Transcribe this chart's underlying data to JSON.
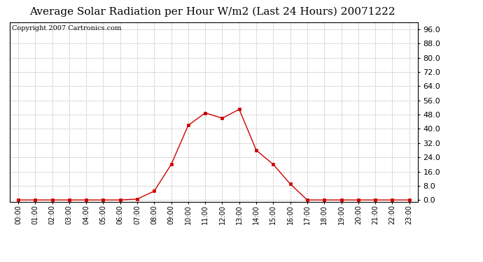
{
  "title": "Average Solar Radiation per Hour W/m2 (Last 24 Hours) 20071222",
  "copyright_text": "Copyright 2007 Cartronics.com",
  "hours": [
    "00:00",
    "01:00",
    "02:00",
    "03:00",
    "04:00",
    "05:00",
    "06:00",
    "07:00",
    "08:00",
    "09:00",
    "10:00",
    "11:00",
    "12:00",
    "13:00",
    "14:00",
    "15:00",
    "16:00",
    "17:00",
    "18:00",
    "19:00",
    "20:00",
    "21:00",
    "22:00",
    "23:00"
  ],
  "values": [
    0.0,
    0.0,
    0.0,
    0.0,
    0.0,
    0.0,
    0.0,
    0.5,
    5.0,
    20.0,
    42.0,
    49.0,
    46.0,
    51.0,
    28.0,
    20.0,
    9.0,
    0.0,
    0.0,
    0.0,
    0.0,
    0.0,
    0.0,
    0.0
  ],
  "line_color": "#cc0000",
  "marker": "s",
  "marker_size": 2.5,
  "bg_color": "#ffffff",
  "plot_bg_color": "#ffffff",
  "grid_color": "#bbbbbb",
  "title_fontsize": 11,
  "copyright_fontsize": 7,
  "ylim_min": -1,
  "ylim_max": 100,
  "yticks": [
    0.0,
    8.0,
    16.0,
    24.0,
    32.0,
    40.0,
    48.0,
    56.0,
    64.0,
    72.0,
    80.0,
    88.0,
    96.0
  ]
}
